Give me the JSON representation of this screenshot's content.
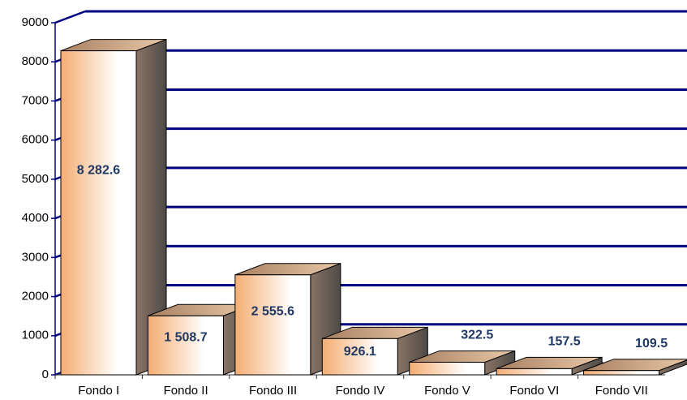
{
  "chart_data": {
    "type": "bar3d",
    "categories": [
      "Fondo I",
      "Fondo II",
      "Fondo III",
      "Fondo IV",
      "Fondo V",
      "Fondo VI",
      "Fondo VII"
    ],
    "values": [
      8282.6,
      1508.7,
      2555.6,
      926.1,
      322.5,
      157.5,
      109.5
    ],
    "value_labels": [
      "8 282.6",
      "1 508.7",
      "2 555.6",
      "926.1",
      "322.5",
      "157.5",
      "109.5"
    ],
    "ylim": [
      0,
      9000
    ],
    "yticks": [
      0,
      1000,
      2000,
      3000,
      4000,
      5000,
      6000,
      7000,
      8000,
      9000
    ],
    "grid": true,
    "grid_color": "#000080"
  }
}
